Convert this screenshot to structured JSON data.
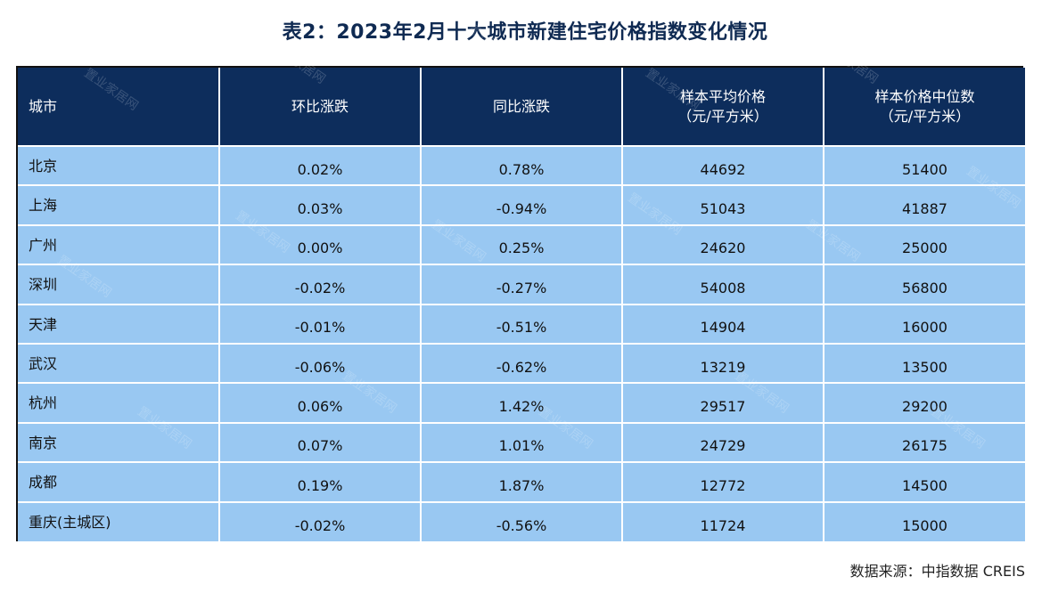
{
  "title": "表2：2023年2月十大城市新建住宅价格指数变化情况",
  "headers": [
    {
      "lines": [
        "城市"
      ]
    },
    {
      "lines": [
        "环比涨跌"
      ]
    },
    {
      "lines": [
        "同比涨跌"
      ]
    },
    {
      "lines": [
        "样本平均价格",
        "（元/平方米）"
      ]
    },
    {
      "lines": [
        "样本价格中位数",
        "（元/平方米）"
      ]
    }
  ],
  "rows": [
    {
      "city": "北京",
      "mom": "0.02%",
      "yoy": "0.78%",
      "avg": "44692",
      "median": "51400"
    },
    {
      "city": "上海",
      "mom": "0.03%",
      "yoy": "-0.94%",
      "avg": "51043",
      "median": "41887"
    },
    {
      "city": "广州",
      "mom": "0.00%",
      "yoy": "0.25%",
      "avg": "24620",
      "median": "25000"
    },
    {
      "city": "深圳",
      "mom": "-0.02%",
      "yoy": "-0.27%",
      "avg": "54008",
      "median": "56800"
    },
    {
      "city": "天津",
      "mom": "-0.01%",
      "yoy": "-0.51%",
      "avg": "14904",
      "median": "16000"
    },
    {
      "city": "武汉",
      "mom": "-0.06%",
      "yoy": "-0.62%",
      "avg": "13219",
      "median": "13500"
    },
    {
      "city": "杭州",
      "mom": "0.06%",
      "yoy": "1.42%",
      "avg": "29517",
      "median": "29200"
    },
    {
      "city": "南京",
      "mom": "0.07%",
      "yoy": "1.01%",
      "avg": "24729",
      "median": "26175"
    },
    {
      "city": "成都",
      "mom": "0.19%",
      "yoy": "1.87%",
      "avg": "12772",
      "median": "14500"
    },
    {
      "city": "重庆(主城区)",
      "mom": "-0.02%",
      "yoy": "-0.56%",
      "avg": "11724",
      "median": "15000"
    }
  ],
  "source": "数据来源：中指数据 CREIS",
  "watermark_text": "置业家居网",
  "colors": {
    "header_bg": "#0d2d5c",
    "cell_bg": "#99c8f2",
    "title": "#0f2a52"
  }
}
